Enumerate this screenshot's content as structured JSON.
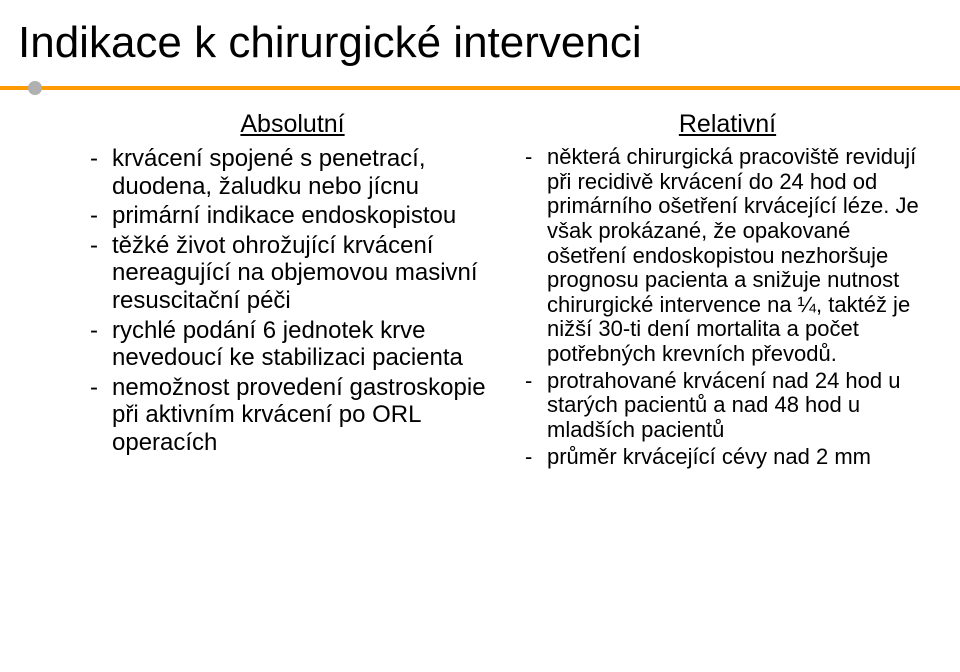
{
  "title": "Indikace k chirurgické intervenci",
  "left": {
    "heading": "Absolutní",
    "items": [
      "krvácení spojené s penetrací, duodena, žaludku nebo jícnu",
      "primární indikace endoskopistou",
      "těžké život ohrožující krvácení nereagující na objemovou masivní resuscitační péči",
      "rychlé podání 6 jednotek krve nevedoucí ke stabilizaci pacienta",
      "nemožnost provedení gastroskopie při aktivním krvácení po ORL operacích"
    ]
  },
  "right": {
    "heading": "Relativní",
    "items": [
      "některá chirurgická pracoviště revidují při recidivě krvácení do 24 hod od primárního ošetření krvácející léze. Je však prokázané, že opakované ošetření endoskopistou nezhoršuje prognosu pacienta a snižuje nutnost chirurgické intervence na ¼, taktéž je nižší 30-ti dení mortalita a počet potřebných krevních převodů.",
      "protrahované krvácení nad 24 hod u starých pacientů a nad 48 hod u mladších pacientů",
      "průměr krvácející cévy nad 2 mm"
    ]
  },
  "colors": {
    "accent": "#ff9a00",
    "dot": "#b0b0b0",
    "text": "#000000",
    "bg": "#ffffff"
  }
}
